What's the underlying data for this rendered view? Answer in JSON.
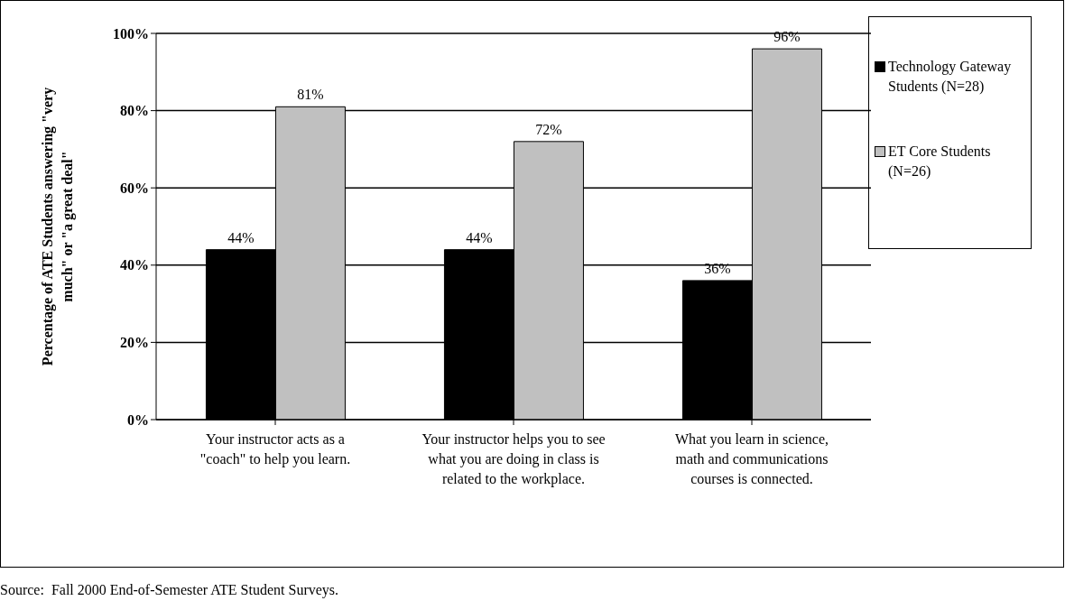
{
  "chart_data": {
    "type": "bar",
    "ylabel": "Percentage of ATE Students answering \"very much\" or \"a great deal\"",
    "categories": [
      "Your instructor acts as a \"coach\" to help you learn.",
      "Your instructor helps you to see what you are doing in class is related to the workplace.",
      "What you learn in science, math and communications courses is connected."
    ],
    "series": [
      {
        "name": "Technology Gateway Students (N=28)",
        "color": "#000000",
        "values": [
          44,
          44,
          36
        ],
        "value_labels": [
          "44%",
          "44%",
          "36%"
        ]
      },
      {
        "name": "ET Core Students (N=26)",
        "color": "#c0c0c0",
        "values": [
          81,
          72,
          96
        ],
        "value_labels": [
          "81%",
          "72%",
          "96%"
        ]
      }
    ],
    "ylim": [
      0,
      100
    ],
    "yticks": [
      {
        "value": 0,
        "label": "0%"
      },
      {
        "value": 20,
        "label": "20%"
      },
      {
        "value": 40,
        "label": "40%"
      },
      {
        "value": 60,
        "label": "60%"
      },
      {
        "value": 80,
        "label": "80%"
      },
      {
        "value": 100,
        "label": "100%"
      }
    ],
    "grid": "y",
    "legend": "right",
    "annotations": [
      "Source:  Fall 2000 End-of-Semester ATE Student Surveys."
    ]
  }
}
